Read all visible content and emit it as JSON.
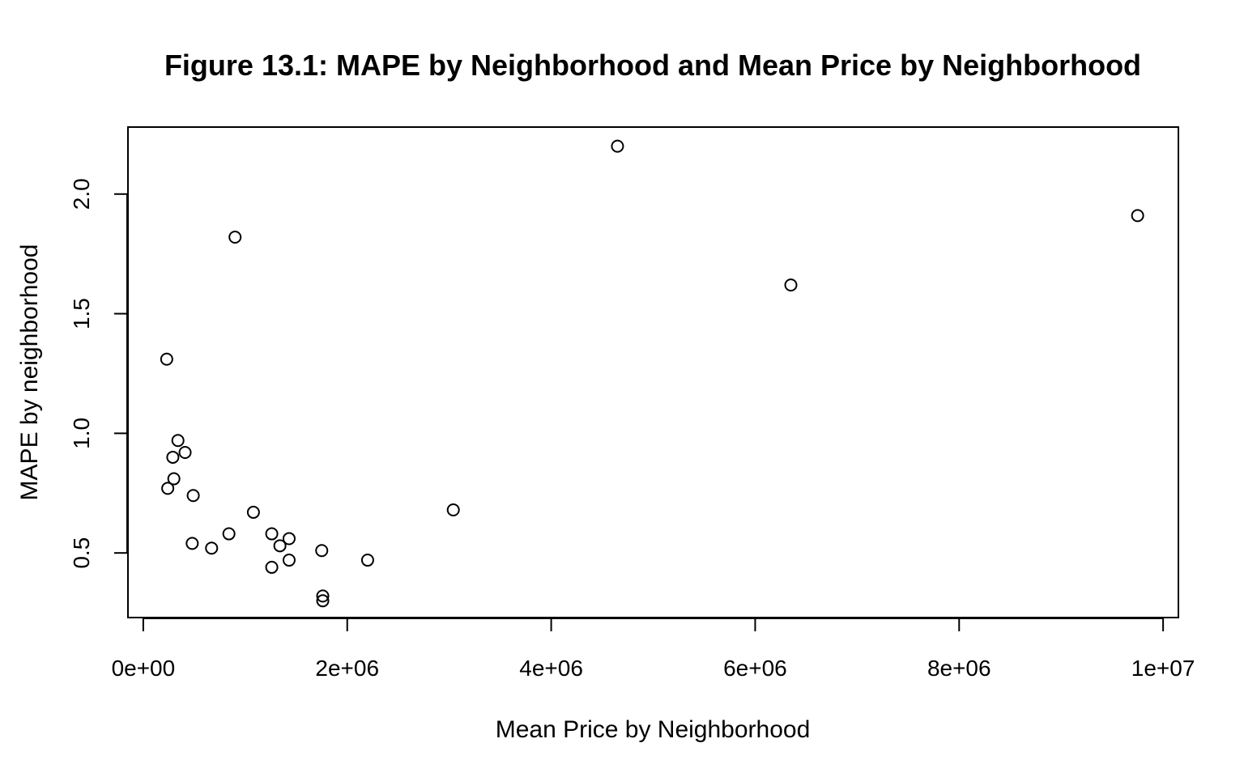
{
  "chart_data": {
    "type": "scatter",
    "title": "Figure 13.1: MAPE by Neighborhood and Mean Price by Neighborhood",
    "xlabel": "Mean Price by Neighborhood",
    "ylabel": "MAPE by neighborhood",
    "xlim": [
      -150000,
      10150000
    ],
    "ylim": [
      0.23,
      2.28
    ],
    "x_ticks": [
      0,
      2000000,
      4000000,
      6000000,
      8000000,
      10000000
    ],
    "x_tick_labels": [
      "0e+00",
      "2e+06",
      "4e+06",
      "6e+06",
      "8e+06",
      "1e+07"
    ],
    "y_ticks": [
      0.5,
      1.0,
      1.5,
      2.0
    ],
    "y_tick_labels": [
      "0.5",
      "1.0",
      "1.5",
      "2.0"
    ],
    "grid": false,
    "legend": false,
    "points": [
      {
        "x": 4650000,
        "y": 2.2
      },
      {
        "x": 9750000,
        "y": 1.91
      },
      {
        "x": 900000,
        "y": 1.82
      },
      {
        "x": 6350000,
        "y": 1.62
      },
      {
        "x": 230000,
        "y": 1.31
      },
      {
        "x": 340000,
        "y": 0.97
      },
      {
        "x": 410000,
        "y": 0.92
      },
      {
        "x": 290000,
        "y": 0.9
      },
      {
        "x": 300000,
        "y": 0.81
      },
      {
        "x": 240000,
        "y": 0.77
      },
      {
        "x": 490000,
        "y": 0.74
      },
      {
        "x": 3040000,
        "y": 0.68
      },
      {
        "x": 1080000,
        "y": 0.67
      },
      {
        "x": 840000,
        "y": 0.58
      },
      {
        "x": 1260000,
        "y": 0.58
      },
      {
        "x": 1430000,
        "y": 0.56
      },
      {
        "x": 480000,
        "y": 0.54
      },
      {
        "x": 1340000,
        "y": 0.53
      },
      {
        "x": 670000,
        "y": 0.52
      },
      {
        "x": 1750000,
        "y": 0.51
      },
      {
        "x": 1430000,
        "y": 0.47
      },
      {
        "x": 2200000,
        "y": 0.47
      },
      {
        "x": 1260000,
        "y": 0.44
      },
      {
        "x": 1760000,
        "y": 0.32
      },
      {
        "x": 1760000,
        "y": 0.3
      }
    ]
  }
}
